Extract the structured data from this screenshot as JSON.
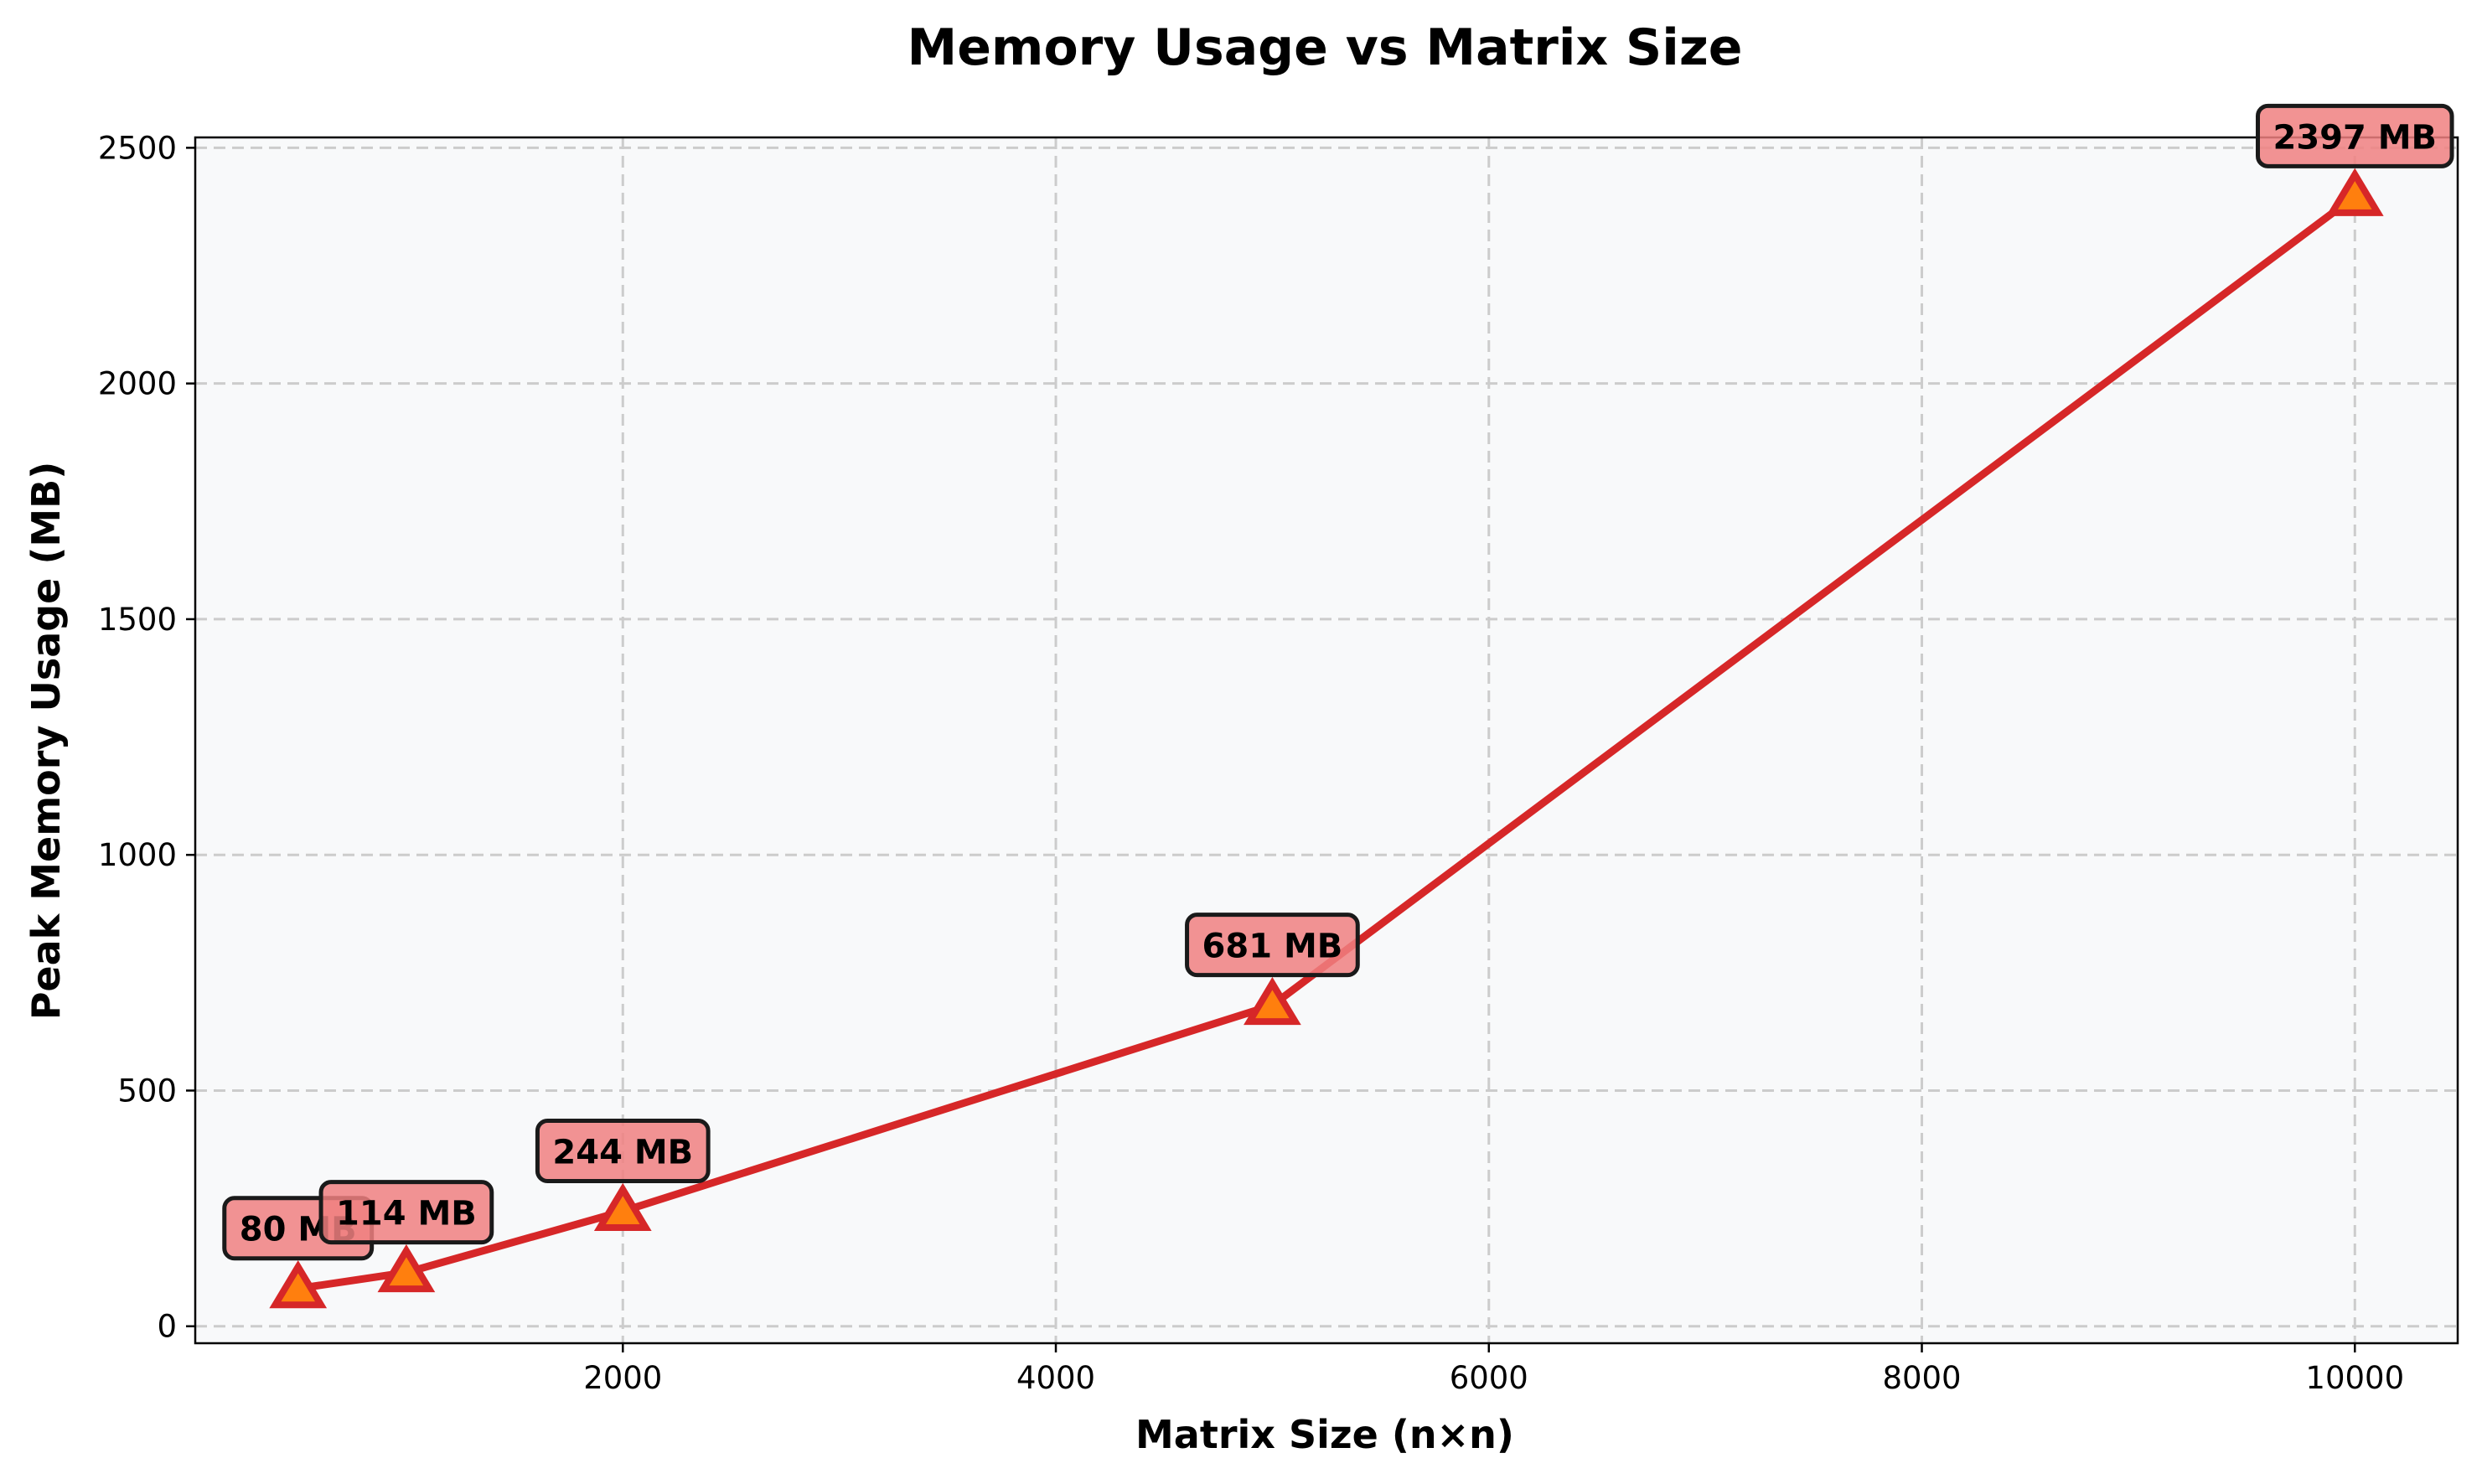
{
  "chart_data": {
    "type": "line",
    "title": "Memory Usage vs Matrix Size",
    "xlabel": "Matrix Size (n×n)",
    "ylabel": "Peak Memory Usage (MB)",
    "x": [
      500,
      1000,
      2000,
      5000,
      10000
    ],
    "series": [
      {
        "values": [
          80,
          114,
          244,
          681,
          2397
        ],
        "labels": [
          "80 MB",
          "114 MB",
          "244 MB",
          "681 MB",
          "2397 MB"
        ]
      }
    ],
    "xlim": [
      25,
      10475
    ],
    "ylim": [
      -36,
      2522
    ],
    "xticks": [
      2000,
      4000,
      6000,
      8000,
      10000
    ],
    "xtick_labels": [
      "2000",
      "4000",
      "6000",
      "8000",
      "10000"
    ],
    "yticks": [
      0,
      500,
      1000,
      1500,
      2000,
      2500
    ],
    "ytick_labels": [
      "0",
      "500",
      "1000",
      "1500",
      "2000",
      "2500"
    ],
    "grid": true,
    "marker": "triangle",
    "colors": {
      "line": "#d62728",
      "marker_fill": "#ff7f0e",
      "marker_edge": "#d62728",
      "label_box": "#f08080",
      "label_box_edge": "#1a1a1a",
      "plot_background": "#f8f9fa",
      "grid": "#cccccc"
    }
  }
}
